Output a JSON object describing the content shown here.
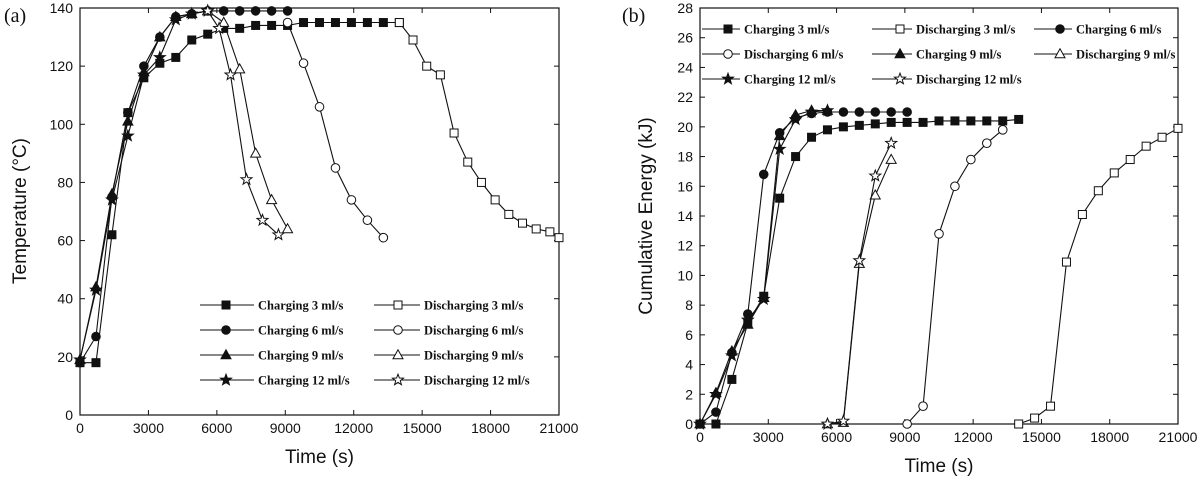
{
  "chart_data": [
    {
      "type": "line",
      "panel_label": "(a)",
      "xlabel": "Time (s)",
      "ylabel": "Temperature (°C)",
      "xlim": [
        0,
        21000
      ],
      "ylim": [
        0,
        140
      ],
      "xticks": [
        "0",
        "3000",
        "6000",
        "9000",
        "12000",
        "15000",
        "18000",
        "21000"
      ],
      "yticks": [
        "0",
        "20",
        "40",
        "60",
        "80",
        "100",
        "120",
        "140"
      ],
      "legend_position": "bottom-right",
      "series": [
        {
          "name": "Charging 3 ml/s",
          "marker": "square",
          "filled": true,
          "x": [
            0,
            700,
            1400,
            2100,
            2800,
            3500,
            4200,
            4900,
            5600,
            6300,
            7000,
            7700,
            8400,
            9100,
            9800,
            10500,
            11200,
            11900,
            12600,
            13300,
            14000
          ],
          "y": [
            18,
            18,
            62,
            104,
            116,
            121,
            123,
            129,
            131,
            133,
            133,
            134,
            134,
            134,
            135,
            135,
            135,
            135,
            135,
            135,
            135
          ]
        },
        {
          "name": "Discharging 3 ml/s",
          "marker": "square",
          "filled": false,
          "x": [
            14000,
            14600,
            15200,
            15800,
            16400,
            17000,
            17600,
            18200,
            18800,
            19400,
            20000,
            20600,
            21000
          ],
          "y": [
            135,
            129,
            120,
            117,
            97,
            87,
            80,
            74,
            69,
            66,
            64,
            63,
            61
          ]
        },
        {
          "name": "Charging 6 ml/s",
          "marker": "circle",
          "filled": true,
          "x": [
            0,
            700,
            1400,
            2100,
            2800,
            3500,
            4200,
            4900,
            5600,
            6300,
            7000,
            7700,
            8400,
            9100
          ],
          "y": [
            18,
            27,
            75,
            104,
            120,
            130,
            137,
            138,
            139,
            139,
            139,
            139,
            139,
            139
          ]
        },
        {
          "name": "Discharging 6 ml/s",
          "marker": "circle",
          "filled": false,
          "x": [
            9100,
            9800,
            10500,
            11200,
            11900,
            12600,
            13300
          ],
          "y": [
            135,
            121,
            106,
            85,
            74,
            67,
            61
          ]
        },
        {
          "name": "Charging 9 ml/s",
          "marker": "triangle",
          "filled": true,
          "x": [
            0,
            700,
            1400,
            2100,
            2800,
            3500,
            4200,
            4900,
            5600
          ],
          "y": [
            19,
            44,
            76,
            101,
            118,
            130,
            137,
            138,
            139
          ]
        },
        {
          "name": "Discharging 9 ml/s",
          "marker": "triangle",
          "filled": false,
          "x": [
            5600,
            6300,
            7000,
            7700,
            8400,
            9100
          ],
          "y": [
            139,
            135,
            119,
            90,
            74,
            64
          ]
        },
        {
          "name": "Charging 12 ml/s",
          "marker": "star",
          "filled": true,
          "x": [
            0,
            700,
            1400,
            2100,
            2800,
            3500,
            4200,
            4900,
            5600
          ],
          "y": [
            19,
            43,
            74,
            96,
            117,
            123,
            136,
            138,
            139
          ]
        },
        {
          "name": "Discharging 12 ml/s",
          "marker": "star",
          "filled": false,
          "x": [
            5600,
            6100,
            6600,
            7300,
            8000,
            8700
          ],
          "y": [
            139,
            133,
            117,
            81,
            67,
            62
          ]
        }
      ]
    },
    {
      "type": "line",
      "panel_label": "(b)",
      "xlabel": "Time (s)",
      "ylabel": "Cumulative Energy (kJ)",
      "xlim": [
        0,
        21000
      ],
      "ylim": [
        0,
        28
      ],
      "xticks": [
        "0",
        "3000",
        "6000",
        "9000",
        "12000",
        "15000",
        "18000",
        "21000"
      ],
      "yticks": [
        "0",
        "2",
        "4",
        "6",
        "8",
        "10",
        "12",
        "14",
        "16",
        "18",
        "20",
        "22",
        "24",
        "26",
        "28"
      ],
      "legend_position": "top-left",
      "series": [
        {
          "name": "Charging 3 ml/s",
          "marker": "square",
          "filled": true,
          "x": [
            0,
            700,
            1400,
            2100,
            2800,
            3500,
            4200,
            4900,
            5600,
            6300,
            7000,
            7700,
            8400,
            9100,
            9800,
            10500,
            11200,
            11900,
            12600,
            13300,
            14000
          ],
          "y": [
            0,
            0,
            3.0,
            6.8,
            8.6,
            15.2,
            18.0,
            19.3,
            19.8,
            20.0,
            20.1,
            20.2,
            20.3,
            20.3,
            20.3,
            20.4,
            20.4,
            20.4,
            20.4,
            20.4,
            20.5
          ]
        },
        {
          "name": "Discharging 3 ml/s",
          "marker": "square",
          "filled": false,
          "x": [
            14000,
            14700,
            15400,
            16100,
            16800,
            17500,
            18200,
            18900,
            19600,
            20300,
            21000
          ],
          "y": [
            0,
            0.4,
            1.2,
            10.9,
            14.1,
            15.7,
            16.9,
            17.8,
            18.7,
            19.3,
            19.9
          ]
        },
        {
          "name": "Charging 6 ml/s",
          "marker": "circle",
          "filled": true,
          "x": [
            0,
            700,
            1400,
            2100,
            2800,
            3500,
            4200,
            4900,
            5600,
            6300,
            7000,
            7700,
            8400,
            9100
          ],
          "y": [
            0,
            0.8,
            4.8,
            7.4,
            16.8,
            19.6,
            20.6,
            20.9,
            21.0,
            21.0,
            21.0,
            21.0,
            21.0,
            21.0
          ]
        },
        {
          "name": "Discharging 6 ml/s",
          "marker": "circle",
          "filled": false,
          "x": [
            9100,
            9800,
            10500,
            11200,
            11900,
            12600,
            13300
          ],
          "y": [
            0,
            1.2,
            12.8,
            16.0,
            17.8,
            18.9,
            19.8
          ]
        },
        {
          "name": "Charging 9 ml/s",
          "marker": "triangle",
          "filled": true,
          "x": [
            0,
            700,
            1400,
            2100,
            2800,
            3500,
            4200,
            4900,
            5600
          ],
          "y": [
            0,
            2.1,
            4.9,
            6.7,
            8.5,
            19.4,
            20.8,
            21.1,
            21.1
          ]
        },
        {
          "name": "Discharging 9 ml/s",
          "marker": "triangle",
          "filled": false,
          "x": [
            5600,
            6300,
            7000,
            7700,
            8400
          ],
          "y": [
            0,
            0.1,
            10.8,
            15.4,
            17.8
          ]
        },
        {
          "name": "Charging 12 ml/s",
          "marker": "star",
          "filled": true,
          "x": [
            0,
            700,
            1400,
            2100,
            2800,
            3500,
            4200,
            4900,
            5600
          ],
          "y": [
            0,
            2.0,
            4.6,
            7.0,
            8.4,
            18.5,
            20.5,
            21.0,
            21.1
          ]
        },
        {
          "name": "Discharging 12 ml/s",
          "marker": "star",
          "filled": false,
          "x": [
            5600,
            6300,
            7000,
            7700,
            8400
          ],
          "y": [
            0,
            0.2,
            11.0,
            16.7,
            18.9
          ]
        }
      ]
    }
  ]
}
